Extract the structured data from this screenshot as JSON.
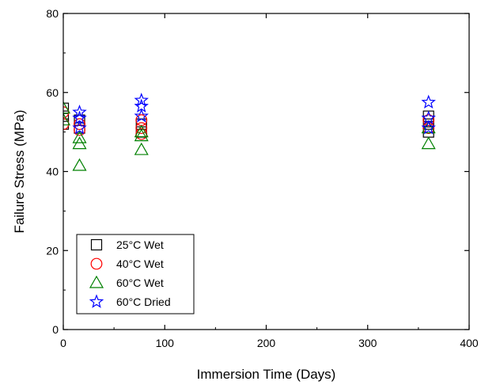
{
  "chart_data": {
    "type": "scatter",
    "title": "",
    "xlabel": "Immersion Time (Days)",
    "ylabel": "Failure Stress (MPa)",
    "xlim": [
      0,
      400
    ],
    "ylim": [
      0,
      80
    ],
    "xticks": [
      0,
      100,
      200,
      300,
      400
    ],
    "yticks": [
      0,
      20,
      40,
      60,
      80
    ],
    "grid": false,
    "legend_position": "bottom-left",
    "series": [
      {
        "name": "25°C Wet",
        "marker": "square",
        "color": "#000000",
        "points": [
          {
            "x": 0,
            "y": 56
          },
          {
            "x": 0,
            "y": 54
          },
          {
            "x": 0,
            "y": 52
          },
          {
            "x": 16,
            "y": 53
          },
          {
            "x": 16,
            "y": 51
          },
          {
            "x": 77,
            "y": 52
          },
          {
            "x": 77,
            "y": 50
          },
          {
            "x": 360,
            "y": 54
          },
          {
            "x": 360,
            "y": 52
          },
          {
            "x": 360,
            "y": 50
          }
        ]
      },
      {
        "name": "40°C Wet",
        "marker": "circle",
        "color": "#ff0000",
        "points": [
          {
            "x": 0,
            "y": 55
          },
          {
            "x": 0,
            "y": 52
          },
          {
            "x": 16,
            "y": 52
          },
          {
            "x": 16,
            "y": 50.5
          },
          {
            "x": 77,
            "y": 53
          },
          {
            "x": 77,
            "y": 51
          },
          {
            "x": 77,
            "y": 49.5
          },
          {
            "x": 360,
            "y": 53
          },
          {
            "x": 360,
            "y": 51
          }
        ]
      },
      {
        "name": "60°C Wet",
        "marker": "triangle",
        "color": "#008000",
        "points": [
          {
            "x": 0,
            "y": 56
          },
          {
            "x": 0,
            "y": 53
          },
          {
            "x": 16,
            "y": 48.5
          },
          {
            "x": 16,
            "y": 47
          },
          {
            "x": 16,
            "y": 41.5
          },
          {
            "x": 77,
            "y": 50
          },
          {
            "x": 77,
            "y": 49
          },
          {
            "x": 77,
            "y": 45.5
          },
          {
            "x": 360,
            "y": 51
          },
          {
            "x": 360,
            "y": 47
          }
        ]
      },
      {
        "name": "60°C Dried",
        "marker": "star",
        "color": "#0000ff",
        "points": [
          {
            "x": 16,
            "y": 55
          },
          {
            "x": 16,
            "y": 53.5
          },
          {
            "x": 16,
            "y": 51
          },
          {
            "x": 77,
            "y": 58
          },
          {
            "x": 77,
            "y": 56.5
          },
          {
            "x": 77,
            "y": 54
          },
          {
            "x": 360,
            "y": 57.5
          },
          {
            "x": 360,
            "y": 53.5
          },
          {
            "x": 360,
            "y": 51
          }
        ]
      }
    ]
  }
}
